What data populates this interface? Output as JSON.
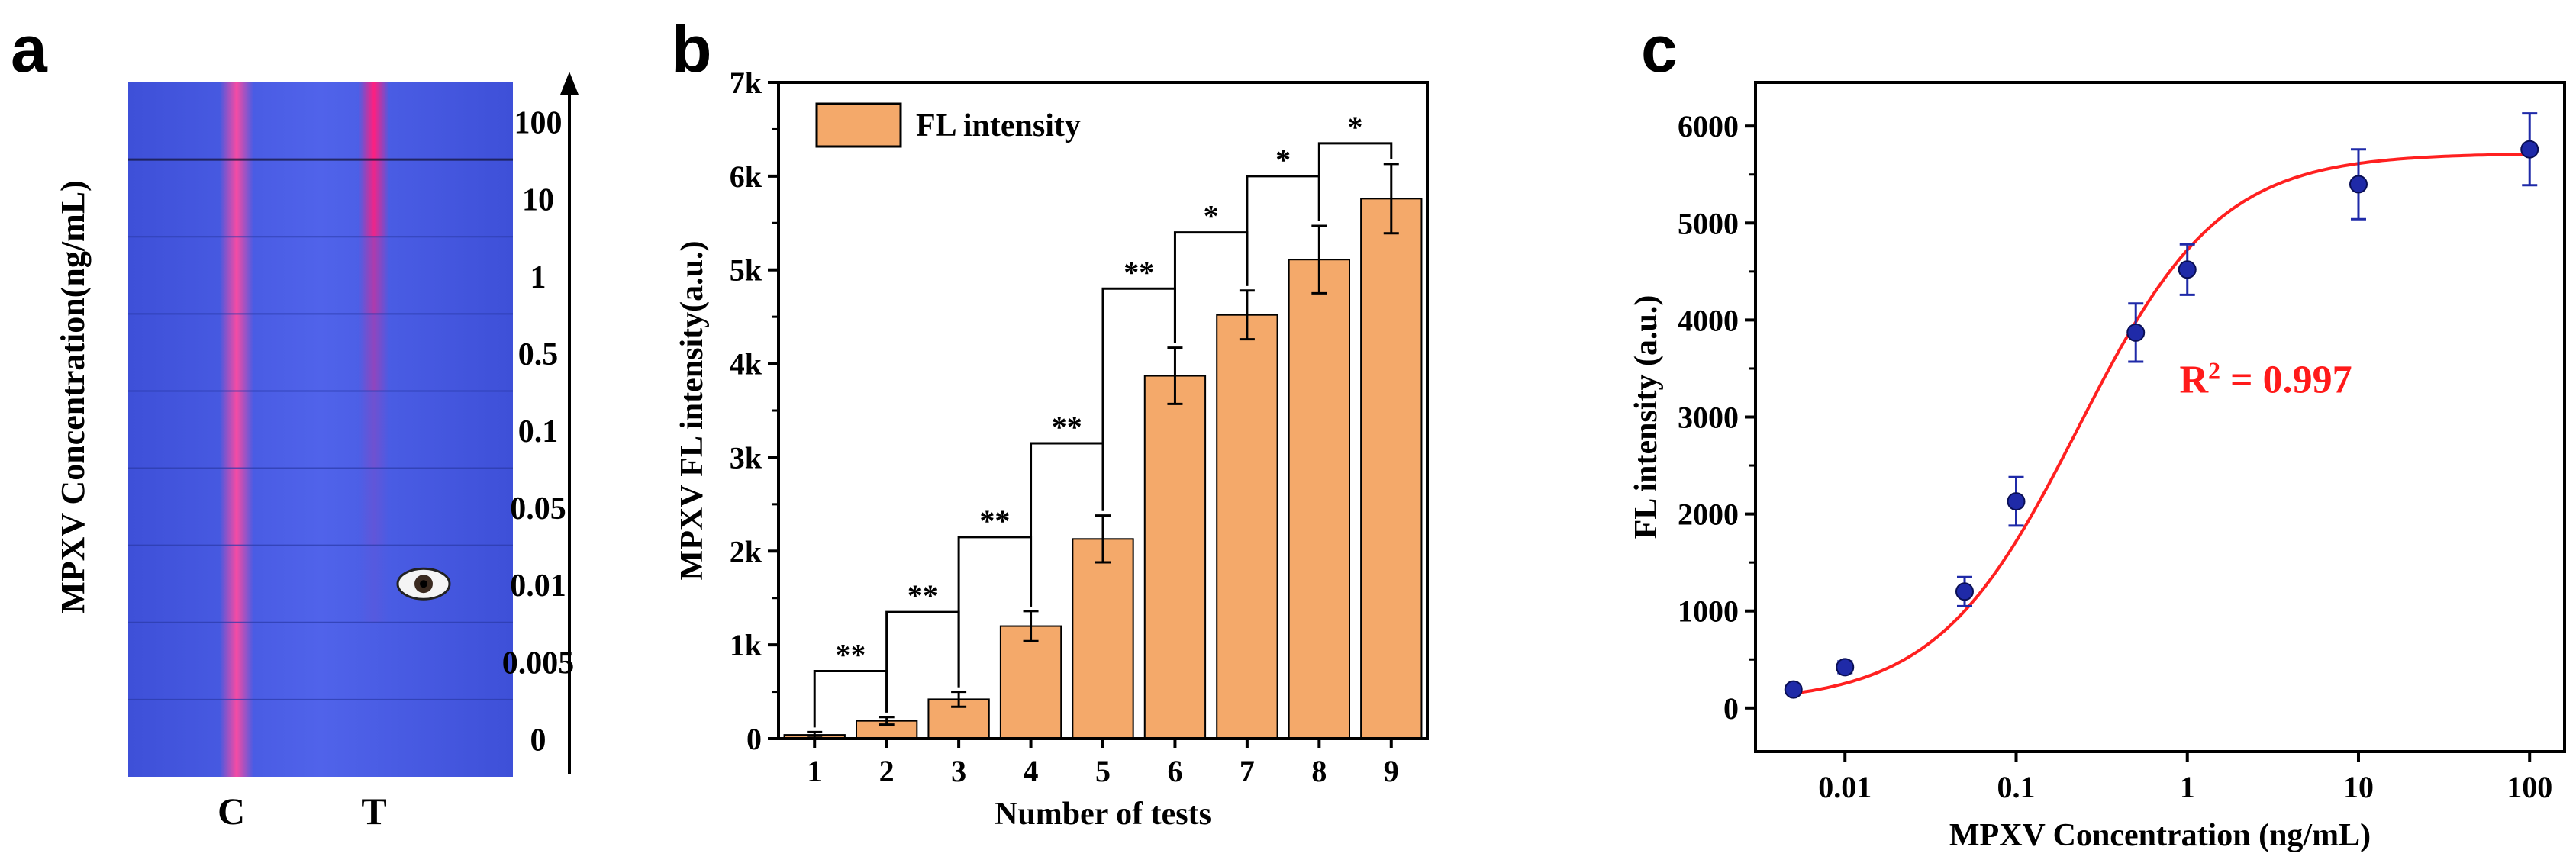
{
  "panels": {
    "a": {
      "letter": "a",
      "ylabel": "MPXV Concentration(ng/mL)",
      "concentrations": [
        "100",
        "10",
        "1",
        "0.5",
        "0.1",
        "0.05",
        "0.01",
        "0.005",
        "0"
      ],
      "t_line_intensity": [
        1.0,
        0.9,
        0.55,
        0.38,
        0.2,
        0.12,
        0.06,
        0.0,
        0.0
      ],
      "lane_labels": [
        "C",
        "T"
      ],
      "eye_row_index": 6,
      "eye_icon": "eye-icon",
      "colors": {
        "strip": "#4a5ee8",
        "strip_dark": "#3c4fd6",
        "line": "#ff2a8a",
        "control": "#ff4aa0"
      }
    },
    "b": {
      "letter": "b"
    },
    "c": {
      "letter": "c"
    }
  },
  "chart_data": [
    {
      "type": "bar",
      "title": "",
      "xlabel": "Number of tests",
      "ylabel": "MPXV FL intensity(a.u.)",
      "categories": [
        "1",
        "2",
        "3",
        "4",
        "5",
        "6",
        "7",
        "8",
        "9"
      ],
      "series": [
        {
          "name": "FL intensity",
          "values": [
            40,
            190,
            420,
            1200,
            2130,
            3870,
            4520,
            5110,
            5760
          ],
          "errors": [
            30,
            40,
            80,
            160,
            250,
            300,
            260,
            360,
            370
          ]
        }
      ],
      "ylim": [
        0,
        7000
      ],
      "yticks": [
        0,
        1000,
        2000,
        3000,
        4000,
        5000,
        6000,
        7000
      ],
      "ytick_labels": [
        "0",
        "1k",
        "2k",
        "3k",
        "4k",
        "5k",
        "6k",
        "7k"
      ],
      "legend": {
        "label": "FL intensity",
        "position": "top-left"
      },
      "significance": [
        {
          "from": 1,
          "to": 2,
          "label": "**",
          "level": 720
        },
        {
          "from": 2,
          "to": 3,
          "label": "**",
          "level": 1350
        },
        {
          "from": 3,
          "to": 4,
          "label": "**",
          "level": 2150
        },
        {
          "from": 4,
          "to": 5,
          "label": "**",
          "level": 3150
        },
        {
          "from": 5,
          "to": 6,
          "label": "**",
          "level": 4800
        },
        {
          "from": 6,
          "to": 7,
          "label": "*",
          "level": 5400
        },
        {
          "from": 7,
          "to": 8,
          "label": "*",
          "level": 6000
        },
        {
          "from": 8,
          "to": 9,
          "label": "*",
          "level": 6350
        }
      ],
      "colors": {
        "bar": "#f4a96a",
        "bar_edge": "#000000"
      }
    },
    {
      "type": "scatter",
      "title": "",
      "xlabel": "MPXV Concentration (ng/mL)",
      "ylabel": "FL intensity (a.u.)",
      "xscale": "log",
      "xlim": [
        0.003,
        160
      ],
      "ylim": [
        -450,
        6450
      ],
      "xticks": [
        0.01,
        0.1,
        1,
        10,
        100
      ],
      "xtick_labels": [
        "0.01",
        "0.1",
        "1",
        "10",
        "100"
      ],
      "yticks": [
        0,
        1000,
        2000,
        3000,
        4000,
        5000,
        6000
      ],
      "ytick_labels": [
        "0",
        "1000",
        "2000",
        "3000",
        "4000",
        "5000",
        "6000"
      ],
      "points": [
        {
          "x": 0.005,
          "y": 190,
          "err": 40
        },
        {
          "x": 0.01,
          "y": 420,
          "err": 60
        },
        {
          "x": 0.05,
          "y": 1200,
          "err": 150
        },
        {
          "x": 0.1,
          "y": 2130,
          "err": 250
        },
        {
          "x": 0.5,
          "y": 3870,
          "err": 300
        },
        {
          "x": 1,
          "y": 4520,
          "err": 260
        },
        {
          "x": 10,
          "y": 5400,
          "err": 360
        },
        {
          "x": 100,
          "y": 5760,
          "err": 370
        }
      ],
      "fit": {
        "model": "logistic",
        "A1": 50,
        "A2": 5720,
        "x0": 0.23,
        "p": 1.05
      },
      "annotation": {
        "base": "R",
        "sup": "2",
        "rest": " = 0.997"
      },
      "colors": {
        "point": "#1f2aa8",
        "fit": "#ff2020",
        "annotation": "#ff1a1a",
        "errbar": "#1f2aa8"
      }
    }
  ]
}
